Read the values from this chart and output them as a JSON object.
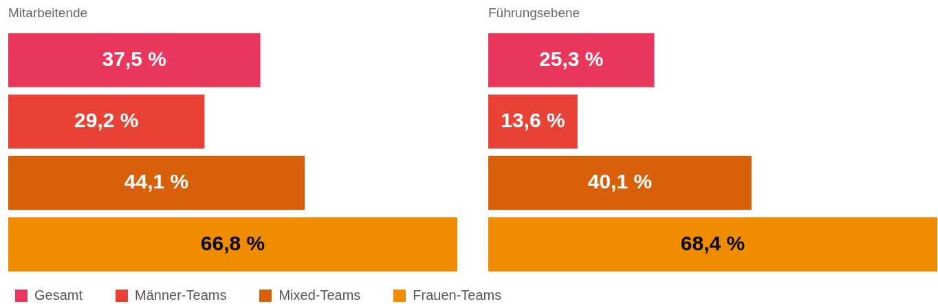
{
  "chart_data": [
    {
      "type": "bar",
      "orientation": "horizontal",
      "stacked": true,
      "title": "Mitarbeitende",
      "categories": [
        null,
        null,
        null,
        null
      ],
      "xlim": [
        0,
        66.8
      ],
      "tick_labels": false,
      "legend": "bottom",
      "series": [
        {
          "name": "Gesamt",
          "color": "#e8365d",
          "values": [
            37.5,
            null,
            null,
            null
          ],
          "value_labels": [
            "37,5 %",
            null,
            null,
            null
          ]
        },
        {
          "name": "Männer-Teams",
          "color": "#e84234",
          "values": [
            null,
            29.2,
            null,
            null
          ],
          "value_labels": [
            null,
            "29,2 %",
            null,
            null
          ]
        },
        {
          "name": "Mixed-Teams",
          "color": "#d9600a",
          "values": [
            null,
            null,
            44.1,
            null
          ],
          "value_labels": [
            null,
            null,
            "44,1 %",
            null
          ]
        },
        {
          "name": "Frauen-Teams",
          "color": "#f08c00",
          "values": [
            null,
            null,
            null,
            66.8
          ],
          "value_labels": [
            null,
            null,
            null,
            "66,8 %"
          ]
        }
      ]
    },
    {
      "type": "bar",
      "orientation": "horizontal",
      "stacked": true,
      "title": "Führungsebene",
      "categories": [
        null,
        null,
        null,
        null
      ],
      "xlim": [
        0,
        68.4
      ],
      "tick_labels": false,
      "series": [
        {
          "name": "Gesamt",
          "color": "#e8365d",
          "values": [
            25.3,
            null,
            null,
            null
          ],
          "value_labels": [
            "25,3 %",
            null,
            null,
            null
          ]
        },
        {
          "name": "Männer-Teams",
          "color": "#e84234",
          "values": [
            null,
            13.6,
            null,
            null
          ],
          "value_labels": [
            null,
            "13,6 %",
            null,
            null
          ]
        },
        {
          "name": "Mixed-Teams",
          "color": "#d9600a",
          "values": [
            null,
            null,
            40.1,
            null
          ],
          "value_labels": [
            null,
            null,
            "40,1 %",
            null
          ]
        },
        {
          "name": "Frauen-Teams",
          "color": "#f08c00",
          "values": [
            null,
            null,
            null,
            68.4
          ],
          "value_labels": [
            null,
            null,
            null,
            "68,4 %"
          ]
        }
      ]
    }
  ]
}
